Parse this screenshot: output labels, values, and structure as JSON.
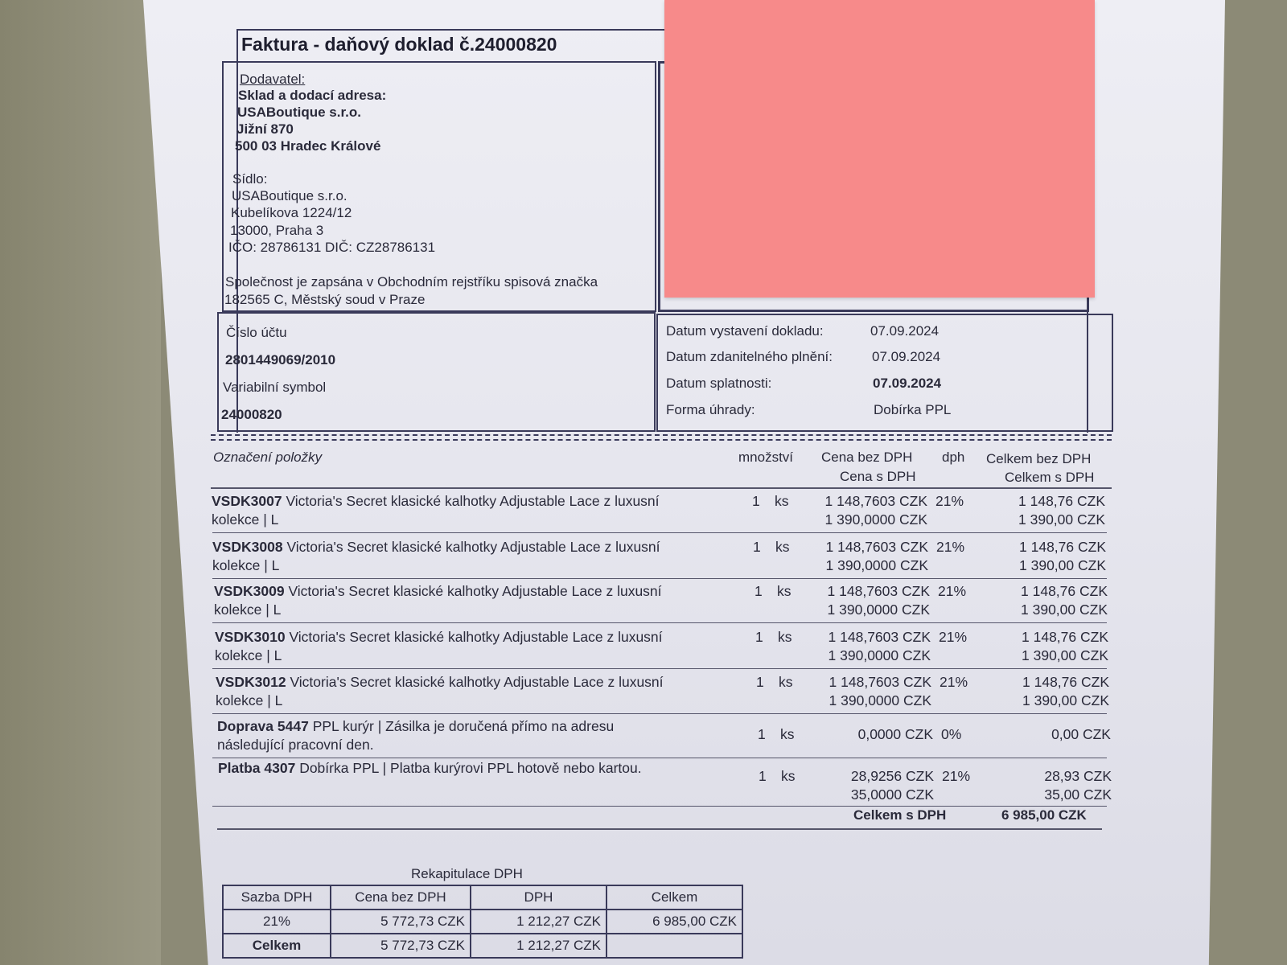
{
  "invoice": {
    "title": "Faktura - daňový doklad č.24000820",
    "supplier": {
      "label": "Dodavatel:",
      "warehouse_label": "Sklad a dodací adresa:",
      "warehouse_name": "USABoutique s.r.o.",
      "warehouse_street": "Jižní 870",
      "warehouse_city": "500 03 Hradec Králové",
      "seat_label": "Sídlo:",
      "seat_name": "USABoutique s.r.o.",
      "seat_street": "Kubelíkova 1224/12",
      "seat_city": "13000, Praha 3",
      "ids": "IČO: 28786131 DIČ: CZ28786131",
      "registry_1": "Společnost je zapsána v Obchodním rejstříku spisová značka",
      "registry_2": "182565 C, Městský soud v Praze"
    },
    "payment": {
      "account_label": "Číslo účtu",
      "account": "2801449069/2010",
      "vs_label": "Variabilní symbol",
      "vs": "24000820"
    },
    "dates": {
      "issued_label": "Datum vystavení dokladu:",
      "issued": "07.09.2024",
      "taxable_label": "Datum zdanitelného plnění:",
      "taxable": "07.09.2024",
      "due_label": "Datum splatnosti:",
      "due": "07.09.2024",
      "method_label": "Forma úhrady:",
      "method": "Dobírka PPL"
    },
    "items_header": {
      "item": "Označení položky",
      "qty": "množství",
      "price_net": "Cena bez DPH",
      "vat": "dph",
      "price_gross": "Cena s DPH",
      "total_net": "Celkem bez DPH",
      "total_gross": "Celkem s DPH"
    },
    "items": [
      {
        "code": "VSDK3007",
        "desc": "Victoria's Secret klasické kalhotky Adjustable Lace z luxusní",
        "desc2": "kolekce | L",
        "qty": "1",
        "unit": "ks",
        "price_net": "1 148,7603 CZK",
        "vat": "21%",
        "price_gross": "1 390,0000 CZK",
        "total_net": "1 148,76 CZK",
        "total_gross": "1 390,00 CZK"
      },
      {
        "code": "VSDK3008",
        "desc": "Victoria's Secret klasické kalhotky Adjustable Lace z luxusní",
        "desc2": "kolekce | L",
        "qty": "1",
        "unit": "ks",
        "price_net": "1 148,7603 CZK",
        "vat": "21%",
        "price_gross": "1 390,0000 CZK",
        "total_net": "1 148,76 CZK",
        "total_gross": "1 390,00 CZK"
      },
      {
        "code": "VSDK3009",
        "desc": "Victoria's Secret klasické kalhotky Adjustable Lace z luxusní",
        "desc2": "kolekce | L",
        "qty": "1",
        "unit": "ks",
        "price_net": "1 148,7603 CZK",
        "vat": "21%",
        "price_gross": "1 390,0000 CZK",
        "total_net": "1 148,76 CZK",
        "total_gross": "1 390,00 CZK"
      },
      {
        "code": "VSDK3010",
        "desc": "Victoria's Secret klasické kalhotky Adjustable Lace z luxusní",
        "desc2": "kolekce | L",
        "qty": "1",
        "unit": "ks",
        "price_net": "1 148,7603 CZK",
        "vat": "21%",
        "price_gross": "1 390,0000 CZK",
        "total_net": "1 148,76 CZK",
        "total_gross": "1 390,00 CZK"
      },
      {
        "code": "VSDK3012",
        "desc": "Victoria's Secret klasické kalhotky Adjustable Lace z luxusní",
        "desc2": "kolekce | L",
        "qty": "1",
        "unit": "ks",
        "price_net": "1 148,7603 CZK",
        "vat": "21%",
        "price_gross": "1 390,0000 CZK",
        "total_net": "1 148,76 CZK",
        "total_gross": "1 390,00 CZK"
      },
      {
        "code": "Doprava 5447",
        "desc": "PPL kurýr | Zásilka je doručená přímo na adresu",
        "desc2": "následující pracovní den.",
        "qty": "1",
        "unit": "ks",
        "price_net": "0,0000 CZK",
        "vat": "0%",
        "price_gross": "",
        "total_net": "0,00 CZK",
        "total_gross": ""
      },
      {
        "code": "Platba 4307",
        "desc": "Dobírka PPL | Platba kurýrovi PPL hotově nebo kartou.",
        "desc2": "",
        "qty": "1",
        "unit": "ks",
        "price_net": "28,9256 CZK",
        "vat": "21%",
        "price_gross": "35,0000 CZK",
        "total_net": "28,93 CZK",
        "total_gross": "35,00 CZK"
      }
    ],
    "grand_total_label": "Celkem s DPH",
    "grand_total": "6 985,00 CZK",
    "recap": {
      "title": "Rekapitulace DPH",
      "headers": [
        "Sazba DPH",
        "Cena bez DPH",
        "DPH",
        "Celkem"
      ],
      "rows": [
        [
          "21%",
          "5 772,73 CZK",
          "1 212,27 CZK",
          "6 985,00 CZK"
        ],
        [
          "Celkem",
          "5 772,73 CZK",
          "1 212,27 CZK",
          ""
        ]
      ]
    }
  },
  "colors": {
    "sticky_note": "#f78a8a",
    "paper": "#e8e8f0",
    "background": "#8c8a76"
  }
}
